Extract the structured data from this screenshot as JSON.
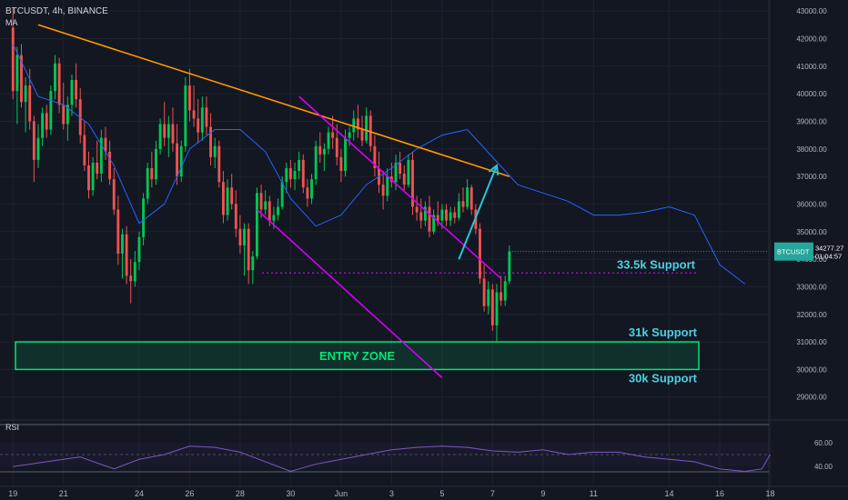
{
  "header": {
    "symbol_line": "BTCUSDT, 4h, BINANCE",
    "indicator": "MA"
  },
  "rsi_pane": {
    "label": "RSI",
    "ticks": [
      "60.00",
      "40.00"
    ],
    "levels": [
      60,
      40
    ]
  },
  "price_label": {
    "symbol": "BTCUSDT",
    "price": "34277.27",
    "countdown": "01:04:57",
    "value": 34277.27
  },
  "annotations": {
    "entry_zone": "ENTRY ZONE",
    "s1": "33.5k Support",
    "s2": "31k Support",
    "s3": "30k Support"
  },
  "colors": {
    "background": "#131722",
    "up": "#26a69a",
    "up_alt": "#00c853",
    "down": "#ef5350",
    "ma": "#2962ff",
    "trendline": "#ff9800",
    "channel": "#d500f9",
    "arrow": "#26c6da",
    "zone": "#00e676",
    "support_text": "#4dd0e1",
    "rsi": "#7e57c2"
  },
  "chart_data": {
    "type": "candlestick",
    "symbol": "BTCUSDT",
    "interval": "4h",
    "exchange": "BINANCE",
    "y_ticks": [
      "43000.00",
      "42000.00",
      "41000.00",
      "40000.00",
      "39000.00",
      "38000.00",
      "37000.00",
      "36000.00",
      "35000.00",
      "34000.00",
      "33000.00",
      "32000.00",
      "31000.00",
      "30000.00",
      "29000.00"
    ],
    "ylim": [
      28200,
      43400
    ],
    "x_ticks": [
      "19",
      "21",
      "24",
      "26",
      "28",
      "30",
      "Jun",
      "3",
      "5",
      "7",
      "9",
      "11",
      "14",
      "16",
      "18"
    ],
    "x_tick_positions": [
      0,
      12,
      30,
      42,
      54,
      66,
      78,
      90,
      102,
      114,
      126,
      138,
      156,
      168,
      180
    ],
    "xlim": [
      -2,
      184
    ],
    "ohlc": [
      [
        42400,
        43100,
        39800,
        40100
      ],
      [
        40100,
        41700,
        38900,
        41400
      ],
      [
        41400,
        41800,
        39500,
        39700
      ],
      [
        39700,
        40600,
        38600,
        40300
      ],
      [
        40300,
        40900,
        38700,
        39000
      ],
      [
        39000,
        39200,
        36800,
        37600
      ],
      [
        37600,
        38900,
        37300,
        38400
      ],
      [
        38400,
        39500,
        38100,
        39300
      ],
      [
        39300,
        39600,
        38400,
        38700
      ],
      [
        38700,
        40300,
        38500,
        40100
      ],
      [
        40100,
        41400,
        39800,
        41100
      ],
      [
        41100,
        41300,
        39300,
        39600
      ],
      [
        39600,
        40400,
        38700,
        38900
      ],
      [
        38900,
        39900,
        38300,
        39600
      ],
      [
        39600,
        40700,
        39200,
        40500
      ],
      [
        40500,
        41100,
        39500,
        39800
      ],
      [
        39800,
        40200,
        38200,
        38500
      ],
      [
        38500,
        39000,
        37200,
        37400
      ],
      [
        37400,
        37900,
        36200,
        36500
      ],
      [
        36500,
        37700,
        36300,
        37500
      ],
      [
        37500,
        38300,
        36900,
        37100
      ],
      [
        37100,
        38700,
        36800,
        38400
      ],
      [
        38400,
        38800,
        37600,
        37900
      ],
      [
        37900,
        38300,
        36700,
        36900
      ],
      [
        36900,
        37300,
        35600,
        35800
      ],
      [
        35800,
        36300,
        33800,
        34200
      ],
      [
        34200,
        35100,
        33300,
        34900
      ],
      [
        34900,
        35200,
        33100,
        33400
      ],
      [
        33400,
        34000,
        32400,
        33200
      ],
      [
        33200,
        34300,
        33000,
        33900
      ],
      [
        33900,
        35000,
        33600,
        34800
      ],
      [
        34800,
        36400,
        34500,
        36200
      ],
      [
        36200,
        37500,
        36000,
        37300
      ],
      [
        37300,
        37900,
        36600,
        36900
      ],
      [
        36900,
        38300,
        36700,
        38000
      ],
      [
        38000,
        39100,
        37800,
        38900
      ],
      [
        38900,
        39700,
        38100,
        38400
      ],
      [
        38400,
        39200,
        37700,
        38900
      ],
      [
        38900,
        39500,
        37900,
        38200
      ],
      [
        38200,
        38900,
        36700,
        37000
      ],
      [
        37000,
        38300,
        36800,
        38100
      ],
      [
        38100,
        40600,
        37900,
        40300
      ],
      [
        40300,
        40900,
        39000,
        39400
      ],
      [
        39400,
        40300,
        38800,
        39100
      ],
      [
        39100,
        39800,
        38200,
        38600
      ],
      [
        38600,
        39900,
        38300,
        39500
      ],
      [
        39500,
        39900,
        38500,
        38800
      ],
      [
        38800,
        39300,
        37400,
        37700
      ],
      [
        37700,
        38400,
        37300,
        38100
      ],
      [
        38100,
        38300,
        36600,
        36800
      ],
      [
        36800,
        37200,
        35300,
        35600
      ],
      [
        35600,
        36900,
        35400,
        36600
      ],
      [
        36600,
        37100,
        35800,
        36000
      ],
      [
        36000,
        36500,
        34800,
        35100
      ],
      [
        35100,
        35600,
        34200,
        34500
      ],
      [
        34500,
        35300,
        33400,
        35100
      ],
      [
        35100,
        35300,
        33100,
        33600
      ],
      [
        33600,
        34300,
        33100,
        34100
      ],
      [
        34100,
        36600,
        34000,
        36400
      ],
      [
        36400,
        36700,
        35500,
        35800
      ],
      [
        35800,
        36500,
        35600,
        36100
      ],
      [
        36100,
        36300,
        35200,
        35400
      ],
      [
        35400,
        35900,
        35100,
        35600
      ],
      [
        35600,
        36200,
        35400,
        35900
      ],
      [
        35900,
        37000,
        35800,
        36800
      ],
      [
        36800,
        37500,
        36400,
        37300
      ],
      [
        37300,
        37600,
        36600,
        36900
      ],
      [
        36900,
        37500,
        36500,
        37200
      ],
      [
        37200,
        37900,
        36900,
        37600
      ],
      [
        37600,
        37800,
        36400,
        36600
      ],
      [
        36600,
        36900,
        35900,
        36200
      ],
      [
        36200,
        37100,
        36000,
        36900
      ],
      [
        36900,
        38300,
        36700,
        38100
      ],
      [
        38100,
        38600,
        37500,
        37800
      ],
      [
        37800,
        38200,
        37200,
        38000
      ],
      [
        38000,
        38800,
        37800,
        38600
      ],
      [
        38600,
        39200,
        38000,
        38400
      ],
      [
        38400,
        38900,
        37400,
        37700
      ],
      [
        37700,
        38000,
        36800,
        37200
      ],
      [
        37200,
        38700,
        37000,
        38400
      ],
      [
        38400,
        38800,
        38100,
        38600
      ],
      [
        38600,
        39400,
        38300,
        39100
      ],
      [
        39100,
        39600,
        38400,
        38700
      ],
      [
        38700,
        39200,
        38100,
        38300
      ],
      [
        38300,
        39500,
        38200,
        39200
      ],
      [
        39200,
        39400,
        37900,
        38100
      ],
      [
        38100,
        38500,
        37000,
        37300
      ],
      [
        37300,
        37900,
        36400,
        36700
      ],
      [
        36700,
        37200,
        35800,
        36300
      ],
      [
        36300,
        37300,
        36100,
        37000
      ],
      [
        37000,
        37500,
        36600,
        36800
      ],
      [
        36800,
        37800,
        36500,
        37500
      ],
      [
        37500,
        37900,
        36900,
        37100
      ],
      [
        37100,
        37400,
        36500,
        36700
      ],
      [
        36700,
        37800,
        36600,
        37600
      ],
      [
        37600,
        37900,
        35600,
        35900
      ],
      [
        35900,
        36300,
        35400,
        35700
      ],
      [
        35700,
        36200,
        35100,
        35400
      ],
      [
        35400,
        36100,
        35200,
        35900
      ],
      [
        35900,
        36300,
        34800,
        35000
      ],
      [
        35000,
        35800,
        34900,
        35600
      ],
      [
        35600,
        36100,
        35200,
        35400
      ],
      [
        35400,
        36000,
        35100,
        35800
      ],
      [
        35800,
        36000,
        35200,
        35400
      ],
      [
        35400,
        35900,
        35200,
        35700
      ],
      [
        35700,
        35900,
        35300,
        35500
      ],
      [
        35500,
        36400,
        35400,
        36100
      ],
      [
        36100,
        36600,
        35700,
        35900
      ],
      [
        35900,
        36900,
        35800,
        36600
      ],
      [
        36600,
        36700,
        35600,
        35800
      ],
      [
        35800,
        36000,
        34900,
        35100
      ],
      [
        35100,
        35300,
        33100,
        33300
      ],
      [
        33300,
        33800,
        32100,
        32300
      ],
      [
        32300,
        33200,
        32000,
        32900
      ],
      [
        32900,
        33100,
        31400,
        31600
      ],
      [
        31600,
        33100,
        31000,
        32800
      ],
      [
        32800,
        33400,
        32300,
        32500
      ],
      [
        32500,
        33400,
        32300,
        33200
      ],
      [
        33200,
        34500,
        33100,
        34277
      ]
    ],
    "ma_series": [
      [
        0,
        41800
      ],
      [
        6,
        39900
      ],
      [
        12,
        39600
      ],
      [
        18,
        38900
      ],
      [
        24,
        37400
      ],
      [
        30,
        35300
      ],
      [
        36,
        36000
      ],
      [
        42,
        38000
      ],
      [
        48,
        38700
      ],
      [
        54,
        38700
      ],
      [
        60,
        37900
      ],
      [
        66,
        36200
      ],
      [
        72,
        35200
      ],
      [
        78,
        35600
      ],
      [
        84,
        36700
      ],
      [
        90,
        37300
      ],
      [
        96,
        38000
      ],
      [
        102,
        38500
      ],
      [
        108,
        38700
      ],
      [
        114,
        37700
      ],
      [
        120,
        36700
      ],
      [
        126,
        36400
      ],
      [
        132,
        36100
      ],
      [
        138,
        35600
      ],
      [
        144,
        35600
      ],
      [
        150,
        35700
      ],
      [
        156,
        35900
      ],
      [
        162,
        35600
      ],
      [
        168,
        33800
      ],
      [
        174,
        33100
      ]
    ],
    "rsi_series": [
      [
        0,
        40
      ],
      [
        8,
        44
      ],
      [
        16,
        48
      ],
      [
        24,
        38
      ],
      [
        30,
        46
      ],
      [
        36,
        50
      ],
      [
        42,
        57
      ],
      [
        48,
        56
      ],
      [
        54,
        52
      ],
      [
        60,
        44
      ],
      [
        66,
        36
      ],
      [
        72,
        42
      ],
      [
        78,
        46
      ],
      [
        84,
        50
      ],
      [
        90,
        54
      ],
      [
        96,
        56
      ],
      [
        102,
        57
      ],
      [
        108,
        56
      ],
      [
        114,
        53
      ],
      [
        120,
        52
      ],
      [
        126,
        54
      ],
      [
        132,
        50
      ],
      [
        138,
        52
      ],
      [
        144,
        52
      ],
      [
        150,
        48
      ],
      [
        156,
        46
      ],
      [
        162,
        44
      ],
      [
        168,
        38
      ],
      [
        174,
        36
      ],
      [
        178,
        38
      ],
      [
        180,
        50
      ]
    ],
    "trendlines": [
      {
        "name": "descending-resistance",
        "from": [
          6,
          42500
        ],
        "to": [
          118,
          37000
        ]
      },
      {
        "name": "channel-top",
        "from": [
          68,
          39900
        ],
        "to": [
          116,
          33300
        ]
      },
      {
        "name": "channel-bottom",
        "from": [
          58,
          35800
        ],
        "to": [
          102,
          29700
        ]
      }
    ],
    "support_level": 33500,
    "entry_zone": [
      30000,
      31000
    ],
    "forecast_arrow": {
      "from": [
        106,
        34000
      ],
      "to": [
        115,
        37400
      ]
    }
  }
}
